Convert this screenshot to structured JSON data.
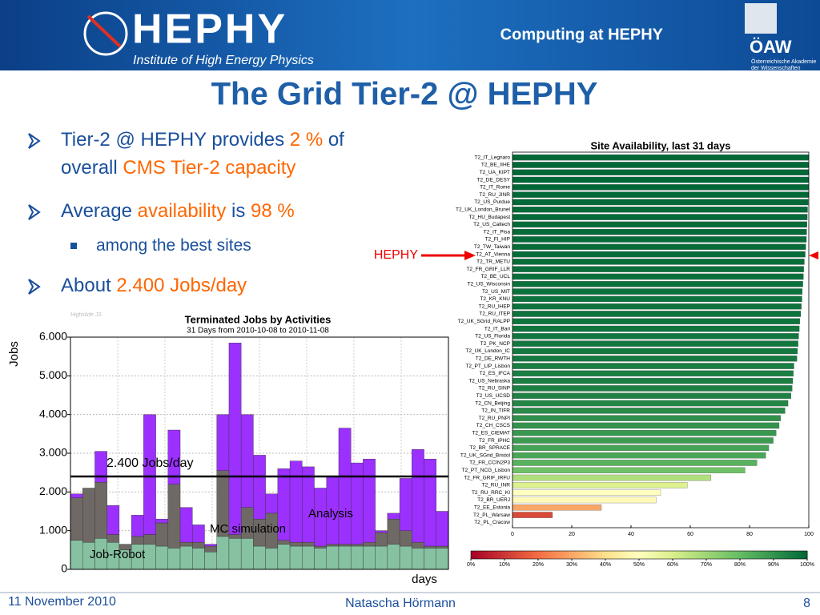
{
  "header": {
    "logo_text": "HEPHY",
    "logo_subtitle": "Institute of High Energy Physics",
    "section": "Computing at HEPHY",
    "academy": "ÖAW",
    "academy_name_1": "Österreichische Akademie",
    "academy_name_2": "der Wissenschaften"
  },
  "title": "The Grid Tier-2 @ HEPHY",
  "bullets": [
    {
      "level": 1,
      "lines": [
        [
          {
            "text": "Tier-2 @ HEPHY provides "
          },
          {
            "text": "2 %",
            "highlight": true
          },
          {
            "text": " of"
          }
        ],
        [
          {
            "text": "overall "
          },
          {
            "text": "CMS Tier-2 capacity",
            "highlight": true
          }
        ]
      ]
    },
    {
      "level": 1,
      "lines": [
        [
          {
            "text": "Average "
          },
          {
            "text": "availability",
            "highlight": true
          },
          {
            "text": " is "
          },
          {
            "text": "98 %",
            "highlight": true
          }
        ]
      ]
    },
    {
      "level": 2,
      "lines": [
        [
          {
            "text": "among the best sites"
          }
        ]
      ]
    },
    {
      "level": 1,
      "lines": [
        [
          {
            "text": "About "
          },
          {
            "text": "2.400 Jobs/day",
            "highlight": true
          }
        ]
      ]
    }
  ],
  "pointer_label": "HEPHY",
  "footer": {
    "date": "11 November 2010",
    "author": "Natascha Hörmann",
    "page": "8"
  },
  "chart_data": [
    {
      "type": "stacked-bar",
      "title": "Terminated Jobs by Activities",
      "subtitle": "31 Days from 2010-10-08 to 2010-11-08",
      "watermark": "Highslide JS",
      "ylabel": "Jobs",
      "xlabel": "days",
      "categories": [
        null,
        null,
        null,
        null,
        null,
        null,
        null,
        null,
        null,
        null,
        null,
        null,
        null,
        null,
        null,
        null,
        null,
        null,
        null,
        null,
        null,
        null,
        null,
        null,
        null,
        null,
        null,
        null,
        null,
        null,
        null
      ],
      "series": [
        {
          "name": "Job-Robot",
          "color": "#86c2a2",
          "values": [
            750,
            700,
            800,
            700,
            500,
            650,
            650,
            600,
            550,
            600,
            550,
            450,
            850,
            800,
            800,
            600,
            550,
            650,
            600,
            600,
            550,
            600,
            600,
            600,
            600,
            600,
            650,
            600,
            550,
            550,
            550
          ]
        },
        {
          "name": "MC simulation",
          "color": "#6e6965",
          "values": [
            1100,
            1400,
            1450,
            200,
            150,
            200,
            250,
            600,
            1650,
            100,
            150,
            150,
            1700,
            100,
            800,
            700,
            900,
            100,
            100,
            100,
            50,
            50,
            50,
            50,
            100,
            350,
            650,
            400,
            150,
            50,
            50
          ]
        },
        {
          "name": "Analysis",
          "color": "#9b30ff",
          "values": [
            100,
            0,
            800,
            750,
            0,
            550,
            3100,
            100,
            1400,
            900,
            450,
            50,
            1450,
            4950,
            2400,
            1650,
            500,
            1850,
            2100,
            1950,
            1500,
            1750,
            3000,
            2100,
            2150,
            50,
            150,
            1350,
            2400,
            2250,
            900
          ]
        }
      ],
      "ylim": [
        0,
        6000
      ],
      "yticks": [
        0,
        {
          "value": 1000,
          "label": "1.000"
        },
        {
          "value": 2000,
          "label": "2.000"
        },
        {
          "value": 3000,
          "label": "3.000"
        },
        {
          "value": 4000,
          "label": "4.000"
        },
        {
          "value": 5000,
          "label": "5.000"
        },
        {
          "value": 6000,
          "label": "6.000"
        }
      ],
      "grid": true,
      "annotations": [
        {
          "text": "2.400 Jobs/day",
          "value": 2400
        }
      ]
    },
    {
      "type": "hbar",
      "title": "Site Availability, last 31 days",
      "colormap": "RdYlGn",
      "categories": [
        "T2_IT_Legnaro",
        "T2_BE_IIHE",
        "T2_UA_KIPT",
        "T2_DE_DESY",
        "T2_IT_Rome",
        "T2_RU_JINR",
        "T2_US_Purdue",
        "T2_UK_London_Brunel",
        "T2_HU_Budapest",
        "T2_US_Caltech",
        "T2_IT_Pisa",
        "T2_FI_HIP",
        "T2_TW_Taiwan",
        "T2_AT_Vienna",
        "T2_TR_METU",
        "T2_FR_GRIF_LLR",
        "T2_BE_UCL",
        "T2_US_Wisconsin",
        "T2_US_MIT",
        "T2_KR_KNU",
        "T2_RU_IHEP",
        "T2_RU_ITEP",
        "T2_UK_SGrid_RALPP",
        "T2_IT_Bari",
        "T2_US_Florida",
        "T2_PK_NCP",
        "T2_UK_London_IC",
        "T2_DE_RWTH",
        "T2_PT_LIP_Lisbon",
        "T2_ES_IFCA",
        "T2_US_Nebraska",
        "T2_RU_SINP",
        "T2_US_UCSD",
        "T2_CN_Beijing",
        "T2_IN_TIFR",
        "T2_RU_PNPI",
        "T2_CH_CSCS",
        "T2_ES_CIEMAT",
        "T2_FR_IPHC",
        "T2_BR_SPRACE",
        "T2_UK_SGrid_Bristol",
        "T2_FR_CCIN2P3",
        "T2_PT_NCG_Lisbon",
        "T2_FR_GRIF_IRFU",
        "T2_RU_INR",
        "T2_RU_RRC_KI",
        "T2_BR_UERJ",
        "T2_EE_Estonia",
        "T2_PL_Warsaw",
        "T2_PL_Cracow"
      ],
      "values": [
        100,
        100,
        100,
        100,
        100,
        100,
        99.8,
        99.6,
        99.5,
        99.4,
        99.3,
        99.2,
        99,
        98.8,
        98.5,
        98.3,
        98.2,
        98,
        97.8,
        97.7,
        97.5,
        97.3,
        97,
        96.8,
        96.6,
        96.4,
        96.2,
        96,
        95,
        94.8,
        94.6,
        94.4,
        94,
        93,
        92,
        90.5,
        90,
        89,
        88,
        86.5,
        85.5,
        82.5,
        78.5,
        67,
        59,
        50,
        48.5,
        30,
        13.5,
        0
      ],
      "xlim": [
        0,
        100
      ],
      "xticks": [
        0,
        20,
        40,
        60,
        80,
        100
      ],
      "colorbar_ticks": [
        {
          "value": 0,
          "label": "0%"
        },
        {
          "value": 10,
          "label": "10%"
        },
        {
          "value": 20,
          "label": "20%"
        },
        {
          "value": 30,
          "label": "30%"
        },
        {
          "value": 40,
          "label": "40%"
        },
        {
          "value": 50,
          "label": "50%"
        },
        {
          "value": 60,
          "label": "60%"
        },
        {
          "value": 70,
          "label": "70%"
        },
        {
          "value": 80,
          "label": "80%"
        },
        {
          "value": 90,
          "label": "90%"
        },
        {
          "value": 100,
          "label": "100%"
        }
      ]
    }
  ]
}
